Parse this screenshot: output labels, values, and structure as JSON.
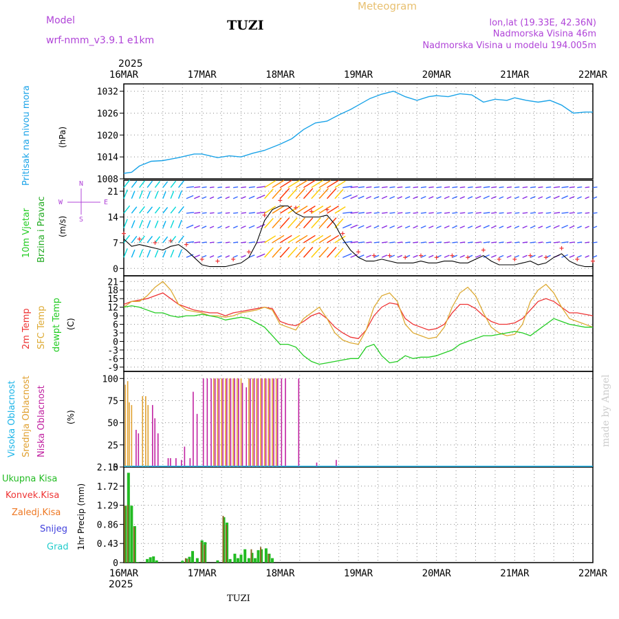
{
  "header": {
    "model_label": "Model",
    "model_name": "wrf-nmm_v3.9.1 e1km",
    "station": "TUZI",
    "product": "Meteogram",
    "lonlat": "lon,lat (19.33E, 42.36N)",
    "elevation": "Nadmorska Visina 46m",
    "model_elevation": "Nadmorska Visina u modelu 194.005m",
    "year": "2025",
    "footer_station": "TUZI",
    "watermark": "made by Angel"
  },
  "colors": {
    "pressure": "#1aa3e8",
    "wind_label": "#22cc22",
    "wind_label2": "#22aa22",
    "purple": "#b044d8",
    "temp2m": "#ee3333",
    "sfc": "#ddaa33",
    "dewpt": "#22cc22",
    "cloud_high": "#1ab4e8",
    "cloud_mid": "#e0a030",
    "cloud_low": "#c020a0",
    "precip_total": "#22bb22",
    "precip_conv": "#ee3333",
    "precip_frz": "#ee7722",
    "snow": "#4040dd",
    "hail": "#22cccc",
    "grid": "#888888"
  },
  "chart_data": [
    {
      "type": "line",
      "title": "",
      "label": "Pritisak na nivou mora",
      "ylabel": "(hPa)",
      "xlabels": [
        "16MAR",
        "17MAR",
        "18MAR",
        "19MAR",
        "20MAR",
        "21MAR",
        "22MAR"
      ],
      "yticks": [
        1008,
        1014,
        1020,
        1026,
        1032
      ],
      "ylim": [
        1008,
        1034
      ],
      "x": [
        0,
        0.1,
        0.2,
        0.35,
        0.5,
        0.7,
        0.9,
        1.0,
        1.2,
        1.35,
        1.5,
        1.65,
        1.8,
        2.0,
        2.15,
        2.3,
        2.45,
        2.6,
        2.75,
        2.9,
        3.0,
        3.15,
        3.3,
        3.45,
        3.6,
        3.75,
        3.9,
        4.0,
        4.15,
        4.3,
        4.45,
        4.6,
        4.75,
        4.9,
        5.0,
        5.15,
        5.3,
        5.45,
        5.6,
        5.75,
        5.9,
        6.0
      ],
      "y": [
        1009.5,
        1009.8,
        1011.5,
        1012.8,
        1013.0,
        1013.8,
        1014.8,
        1014.8,
        1013.8,
        1014.3,
        1014.0,
        1015.0,
        1015.8,
        1017.5,
        1019.0,
        1021.5,
        1023.3,
        1023.8,
        1025.5,
        1027.0,
        1028.2,
        1030.0,
        1031.2,
        1032.0,
        1030.5,
        1029.5,
        1030.5,
        1030.8,
        1030.5,
        1031.3,
        1031.0,
        1029.0,
        1029.8,
        1029.5,
        1030.2,
        1029.5,
        1029.0,
        1029.5,
        1028.2,
        1026.0,
        1026.3,
        1026.3
      ]
    },
    {
      "type": "line",
      "title": "",
      "label": "10m Vjetar Brzina i Pravac",
      "ylabel": "(m/s)",
      "compass": [
        "N",
        "S",
        "W",
        "E"
      ],
      "yticks": [
        0,
        7,
        14,
        21
      ],
      "ylim": [
        -2,
        24
      ],
      "x": [
        0,
        0.1,
        0.2,
        0.3,
        0.4,
        0.5,
        0.6,
        0.7,
        0.8,
        0.9,
        1.0,
        1.1,
        1.2,
        1.3,
        1.4,
        1.5,
        1.6,
        1.7,
        1.8,
        1.9,
        2.0,
        2.1,
        2.2,
        2.3,
        2.4,
        2.5,
        2.6,
        2.7,
        2.8,
        2.9,
        3.0,
        3.1,
        3.2,
        3.3,
        3.4,
        3.5,
        3.6,
        3.7,
        3.8,
        3.9,
        4.0,
        4.1,
        4.2,
        4.3,
        4.4,
        4.5,
        4.6,
        4.7,
        4.8,
        4.9,
        5.0,
        5.1,
        5.2,
        5.3,
        5.4,
        5.5,
        5.6,
        5.7,
        5.8,
        5.9,
        6.0
      ],
      "y": [
        8,
        6,
        6.5,
        6,
        5.5,
        5,
        6,
        6.5,
        5,
        3,
        1,
        0.5,
        0.5,
        0.5,
        1,
        1.5,
        3,
        7,
        13,
        16,
        17,
        17,
        15,
        14,
        14,
        14,
        14.5,
        12,
        8,
        5,
        3,
        2,
        2,
        2.5,
        2,
        1.5,
        1.5,
        1.5,
        2,
        1.5,
        1.5,
        2,
        2,
        1.5,
        1.5,
        2.5,
        3.5,
        2,
        1,
        1,
        1,
        1.5,
        2,
        1,
        1.5,
        3,
        4,
        2,
        1,
        0.5,
        0.5
      ]
    },
    {
      "type": "line",
      "title": "",
      "label": "2m Temp / SFC Temp / dewpt Temp",
      "ylabel": "(C)",
      "yticks": [
        -9,
        -6,
        -3,
        0,
        3,
        6,
        9,
        12,
        15,
        18,
        21
      ],
      "ylim": [
        -10.5,
        23
      ],
      "x": [
        0,
        0.1,
        0.2,
        0.3,
        0.4,
        0.5,
        0.6,
        0.7,
        0.8,
        0.9,
        1.0,
        1.1,
        1.2,
        1.3,
        1.4,
        1.5,
        1.6,
        1.7,
        1.8,
        1.9,
        2.0,
        2.1,
        2.2,
        2.3,
        2.4,
        2.5,
        2.6,
        2.7,
        2.8,
        2.9,
        3.0,
        3.1,
        3.2,
        3.3,
        3.4,
        3.5,
        3.6,
        3.7,
        3.8,
        3.9,
        4.0,
        4.1,
        4.2,
        4.3,
        4.4,
        4.5,
        4.6,
        4.7,
        4.8,
        4.9,
        5.0,
        5.1,
        5.2,
        5.3,
        5.4,
        5.5,
        5.6,
        5.7,
        5.8,
        5.9,
        6.0
      ],
      "series": [
        {
          "name": "2m Temp",
          "values": [
            13,
            14,
            14.5,
            15,
            16,
            17,
            15,
            13,
            12,
            11,
            10.5,
            10,
            10,
            9,
            10,
            10.5,
            11,
            11.5,
            12,
            11.5,
            7,
            6,
            5.5,
            7,
            9,
            10,
            8,
            5,
            3,
            1.5,
            1,
            4,
            9,
            12,
            13.5,
            13,
            8,
            6,
            5,
            4,
            4.5,
            6,
            10,
            13,
            13,
            11.5,
            9,
            7,
            6,
            6,
            6.5,
            8,
            11,
            14,
            15,
            14,
            12,
            10,
            10,
            9.5,
            9
          ]
        },
        {
          "name": "SFC Temp",
          "values": [
            12,
            14,
            14,
            16,
            19,
            21,
            18,
            13,
            11,
            10.5,
            10,
            9,
            9,
            8.5,
            9,
            10,
            10.5,
            11,
            12,
            11,
            6,
            5,
            4,
            8,
            10,
            12,
            8,
            3,
            0.5,
            -0.5,
            -1,
            4,
            12,
            16,
            17,
            14,
            6,
            3,
            2,
            1,
            1.5,
            5,
            12,
            17,
            19,
            16,
            10,
            5,
            3,
            2,
            2.5,
            6,
            14,
            18,
            20,
            17,
            12,
            8,
            7,
            6,
            5
          ]
        },
        {
          "name": "dewpt Temp",
          "values": [
            12,
            12.5,
            12,
            11,
            10,
            10,
            9,
            8.5,
            9,
            9,
            9.5,
            9,
            8.5,
            7.5,
            8,
            8.5,
            8,
            6.5,
            5,
            2,
            -1,
            -1,
            -2,
            -5,
            -7,
            -8,
            -7.5,
            -7,
            -6.5,
            -6,
            -6,
            -2,
            -1,
            -5,
            -7.5,
            -7,
            -5,
            -6,
            -5.5,
            -5.5,
            -5,
            -4,
            -3,
            -1,
            0,
            1,
            2,
            2,
            2.5,
            3,
            3.5,
            3,
            2,
            4,
            6,
            8,
            7,
            6,
            5.5,
            5,
            5
          ]
        }
      ]
    },
    {
      "type": "bar",
      "title": "",
      "label": "Visoka Oblacnost / Srednja Oblacnost / Niska Oblacnost",
      "ylabel": "(%)",
      "yticks": [
        0,
        25,
        50,
        75,
        100
      ],
      "ylim": [
        0,
        100
      ],
      "x": [
        0.02,
        0.05,
        0.07,
        0.1,
        0.14,
        0.17,
        0.2,
        0.24,
        0.28,
        0.31,
        0.35,
        0.38,
        0.42,
        0.46,
        0.55,
        0.58,
        0.65,
        0.72,
        0.76,
        0.83,
        0.87,
        0.92,
        1.0,
        1.05,
        1.1,
        1.15,
        1.2,
        1.25,
        1.3,
        1.35,
        1.4,
        1.45,
        1.5,
        1.55,
        1.6,
        1.65,
        1.7,
        1.75,
        1.8,
        1.85,
        1.9,
        1.95,
        2.0,
        2.05,
        2.22,
        2.45,
        2.7
      ],
      "series": [
        {
          "name": "Srednja Oblacnost",
          "values": [
            93,
            97,
            73,
            70,
            0,
            0,
            0,
            80,
            80,
            70,
            0,
            0,
            0,
            0,
            0,
            0,
            0,
            0,
            0,
            0,
            0,
            0,
            0,
            0,
            0,
            100,
            100,
            100,
            100,
            100,
            100,
            100,
            100,
            0,
            100,
            100,
            100,
            100,
            100,
            100,
            100,
            100,
            0,
            0,
            0,
            0,
            0
          ]
        },
        {
          "name": "Niska Oblacnost",
          "values": [
            0,
            0,
            0,
            0,
            42,
            38,
            0,
            0,
            0,
            0,
            70,
            55,
            38,
            0,
            10,
            10,
            10,
            8,
            23,
            10,
            85,
            60,
            100,
            100,
            100,
            100,
            100,
            100,
            100,
            100,
            100,
            100,
            95,
            90,
            100,
            100,
            100,
            100,
            100,
            100,
            100,
            100,
            100,
            100,
            100,
            5,
            8
          ]
        },
        {
          "name": "Visoka Oblacnost",
          "values": [
            0,
            0,
            0,
            0,
            0,
            0,
            0,
            0,
            0,
            0,
            0,
            0,
            0,
            0,
            0,
            0,
            0,
            0,
            0,
            0,
            0,
            0,
            0,
            0,
            0,
            0,
            0,
            0,
            0,
            0,
            0,
            0,
            0,
            0,
            0,
            0,
            0,
            0,
            0,
            0,
            0,
            0,
            0,
            0,
            0,
            0,
            0
          ]
        }
      ]
    },
    {
      "type": "bar",
      "title": "",
      "label": "1hr Precip (mm)",
      "ylabel": "1hr Precip (mm)",
      "legend": [
        "Ukupna Kisa",
        "Konvek.Kisa",
        "Zaledj.Kisa",
        "Snijeg",
        "Grad"
      ],
      "yticks": [
        0,
        0.43,
        0.86,
        1.29,
        1.72,
        2.15
      ],
      "ylim": [
        0,
        2.15
      ],
      "x": [
        0.02,
        0.06,
        0.1,
        0.14,
        0.18,
        0.3,
        0.34,
        0.38,
        0.42,
        0.75,
        0.8,
        0.84,
        0.88,
        0.94,
        1.0,
        1.04,
        1.2,
        1.28,
        1.32,
        1.36,
        1.42,
        1.46,
        1.5,
        1.55,
        1.6,
        1.64,
        1.68,
        1.72,
        1.76,
        1.82,
        1.86,
        1.9
      ],
      "series": [
        {
          "name": "Ukupna Kisa",
          "values": [
            1.28,
            2.02,
            1.28,
            0.82,
            0.01,
            0.08,
            0.12,
            0.14,
            0.05,
            0.04,
            0.09,
            0.13,
            0.26,
            0.1,
            0.5,
            0.46,
            0.05,
            1.02,
            0.9,
            0.08,
            0.2,
            0.1,
            0.18,
            0.3,
            0.1,
            0.22,
            0.1,
            0.28,
            0.3,
            0.32,
            0.2,
            0.1
          ]
        },
        {
          "name": "Konvek.Kisa",
          "values": [
            1.28,
            1.3,
            0,
            0.8,
            0,
            0,
            0,
            0,
            0,
            0,
            0.1,
            0.08,
            0,
            0,
            0.46,
            0.4,
            0,
            1.05,
            0.85,
            0,
            0,
            0,
            0,
            0,
            0,
            0.3,
            0,
            0,
            0.35,
            0,
            0.2,
            0
          ]
        }
      ]
    }
  ]
}
